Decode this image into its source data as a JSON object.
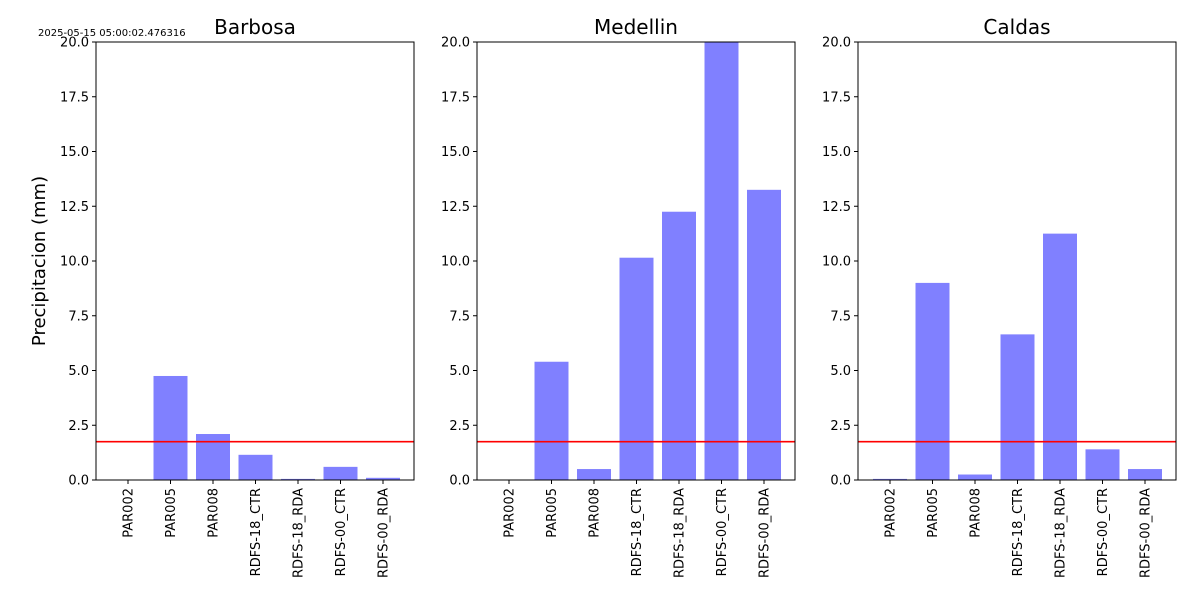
{
  "timestamp": "2025-05-15 05:00:02.476316",
  "ylabel": "Precipitacion (mm)",
  "colors": {
    "bar": "#8080ff",
    "threshold": "#ff0000",
    "axis": "#000000"
  },
  "chart_data": [
    {
      "type": "bar",
      "title": "Barbosa",
      "categories": [
        "PAR002",
        "PAR005",
        "PAR008",
        "RDFS-18_CTR",
        "RDFS-18_RDA",
        "RDFS-00_CTR",
        "RDFS-00_RDA"
      ],
      "values": [
        0.0,
        4.75,
        2.1,
        1.15,
        0.05,
        0.6,
        0.1
      ],
      "ylabel": "Precipitacion (mm)",
      "ylim": [
        0,
        20
      ],
      "yticks": [
        "0.0",
        "2.5",
        "5.0",
        "7.5",
        "10.0",
        "12.5",
        "15.0",
        "17.5",
        "20.0"
      ],
      "threshold": 1.75,
      "grid": false
    },
    {
      "type": "bar",
      "title": "Medellin",
      "categories": [
        "PAR002",
        "PAR005",
        "PAR008",
        "RDFS-18_CTR",
        "RDFS-18_RDA",
        "RDFS-00_CTR",
        "RDFS-00_RDA"
      ],
      "values": [
        0.0,
        5.4,
        0.5,
        10.15,
        12.25,
        20.0,
        13.25
      ],
      "ylim": [
        0,
        20
      ],
      "yticks": [
        "0.0",
        "2.5",
        "5.0",
        "7.5",
        "10.0",
        "12.5",
        "15.0",
        "17.5",
        "20.0"
      ],
      "threshold": 1.75,
      "grid": false
    },
    {
      "type": "bar",
      "title": "Caldas",
      "categories": [
        "PAR002",
        "PAR005",
        "PAR008",
        "RDFS-18_CTR",
        "RDFS-18_RDA",
        "RDFS-00_CTR",
        "RDFS-00_RDA"
      ],
      "values": [
        0.05,
        9.0,
        0.25,
        6.65,
        11.25,
        1.4,
        0.5
      ],
      "ylim": [
        0,
        20
      ],
      "yticks": [
        "0.0",
        "2.5",
        "5.0",
        "7.5",
        "10.0",
        "12.5",
        "15.0",
        "17.5",
        "20.0"
      ],
      "threshold": 1.75,
      "grid": false
    }
  ]
}
